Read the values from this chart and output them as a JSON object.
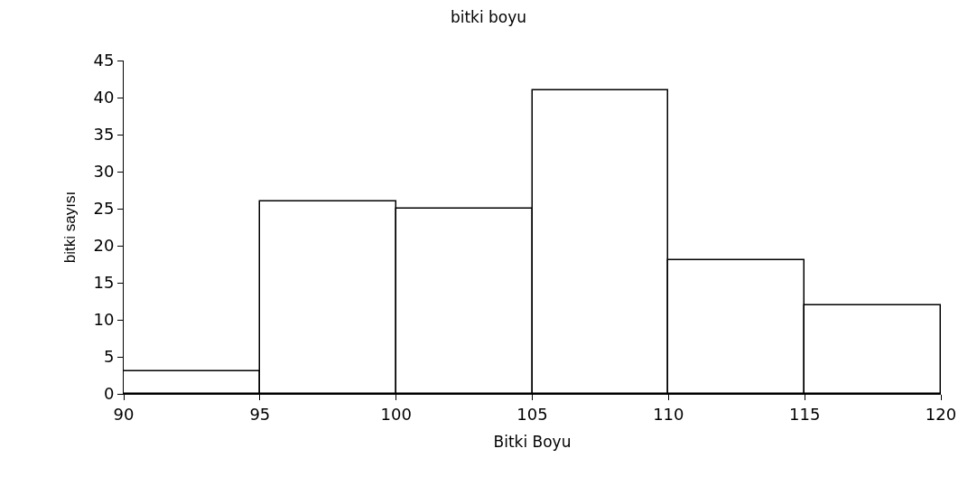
{
  "chart_data": {
    "type": "histogram",
    "title": "bitki boyu",
    "xlabel": "Bitki Boyu",
    "ylabel": "bitki sayısı",
    "bins": [
      90,
      95,
      100,
      105,
      110,
      115,
      120
    ],
    "values": [
      3,
      26,
      25,
      41,
      18,
      12
    ],
    "color": "#ffffff",
    "xlim": [
      90,
      120
    ],
    "xticks": [
      90,
      95,
      100,
      105,
      110,
      115,
      120
    ],
    "ylim": [
      0,
      45
    ],
    "yticks": [
      0,
      5,
      10,
      15,
      20,
      25,
      30,
      35,
      40,
      45
    ]
  }
}
